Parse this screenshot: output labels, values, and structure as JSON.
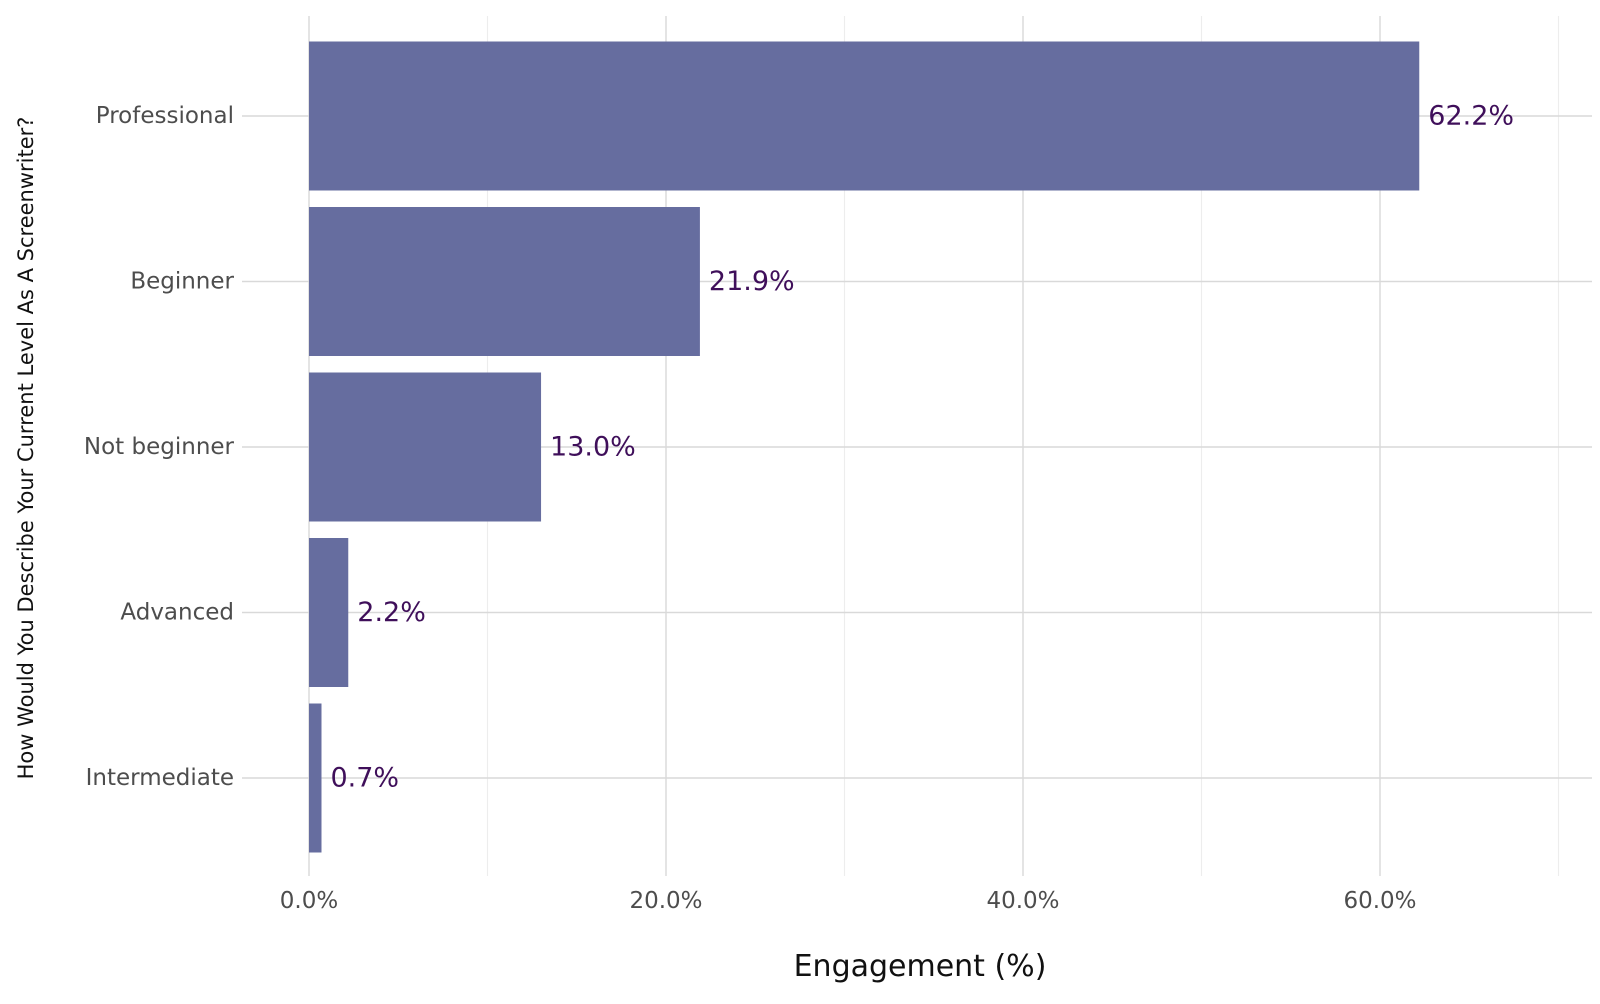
{
  "chart_data": {
    "type": "bar",
    "orientation": "horizontal",
    "categories": [
      "Professional",
      "Beginner",
      "Not beginner",
      "Advanced",
      "Intermediate"
    ],
    "values": [
      62.2,
      21.9,
      13.0,
      2.2,
      0.7
    ],
    "value_labels": [
      "62.2%",
      "21.9%",
      "13.0%",
      "2.2%",
      "0.7%"
    ],
    "xlabel": "Engagement (%)",
    "ylabel": "How Would You Describe Your Current Level As A Screenwriter?",
    "x_ticks": [
      0,
      20,
      40,
      60
    ],
    "x_tick_labels": [
      "0.0%",
      "20.0%",
      "40.0%",
      "60.0%"
    ],
    "xlim": [
      0,
      70
    ],
    "grid": true,
    "legend": "none",
    "colors": {
      "bar": "#636a9d",
      "value_label": "#3f0f5a",
      "grid_major": "#d9d9d9",
      "grid_minor": "#ededed"
    }
  }
}
